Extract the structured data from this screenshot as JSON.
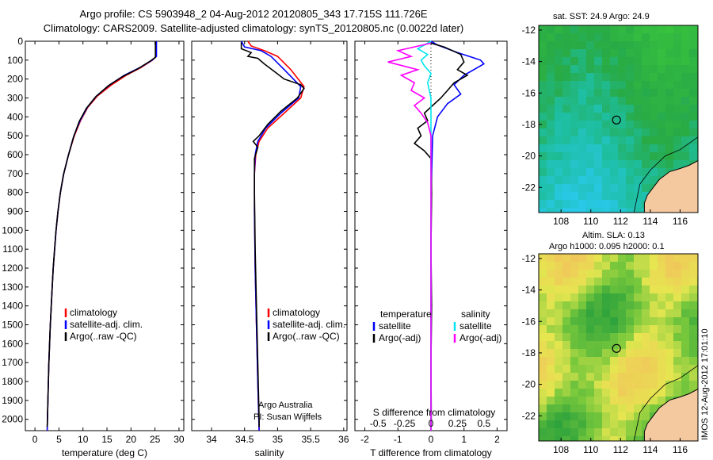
{
  "header": {
    "title_line1": "Argo profile: CS 5903948_2 04-Aug-2012 20120805_343 17.715S 111.726E",
    "title_line2": "Climatology: CARS2009. Satellite-adjusted climatology: synTS_20120805.nc (0.0022d later)"
  },
  "credit": {
    "org": "Argo Australia",
    "pi": "PI: Susan Wijffels",
    "stamp": "IMOS 12-Aug-2012 17:01:10"
  },
  "colors": {
    "climatology": "#ff0000",
    "satellite": "#0000ff",
    "argo": "#000000",
    "sal_satellite": "#00e5ee",
    "sal_argo": "#ff00ff",
    "land": "#f5c9a0"
  },
  "chart_data": [
    {
      "type": "line",
      "id": "temperature",
      "xlabel": "temperature (deg C)",
      "ylabel": "",
      "xlim": [
        -2,
        31
      ],
      "ylim": [
        2060,
        0
      ],
      "xticks": [
        "0",
        "5",
        "10",
        "15",
        "20",
        "25",
        "30"
      ],
      "xtick_values": [
        0,
        5,
        10,
        15,
        20,
        25,
        30
      ],
      "yticks": [
        "0",
        "100",
        "200",
        "300",
        "400",
        "500",
        "600",
        "700",
        "800",
        "900",
        "1000",
        "1100",
        "1200",
        "1300",
        "1400",
        "1500",
        "1600",
        "1700",
        "1800",
        "1900",
        "2000"
      ],
      "ytick_values": [
        0,
        100,
        200,
        300,
        400,
        500,
        600,
        700,
        800,
        900,
        1000,
        1100,
        1200,
        1300,
        1400,
        1500,
        1600,
        1700,
        1800,
        1900,
        2000
      ],
      "legend": [
        "climatology",
        "satellite-adj. clim.",
        "Argo(..raw -QC)"
      ],
      "series": [
        {
          "name": "climatology",
          "color": "#ff0000",
          "points": [
            [
              25.2,
              0
            ],
            [
              25.2,
              80
            ],
            [
              24.5,
              100
            ],
            [
              22,
              140
            ],
            [
              19,
              180
            ],
            [
              16,
              230
            ],
            [
              13,
              290
            ],
            [
              11,
              350
            ],
            [
              9.5,
              420
            ],
            [
              8.2,
              500
            ],
            [
              7,
              600
            ],
            [
              6,
              700
            ],
            [
              5.3,
              800
            ],
            [
              4.8,
              900
            ],
            [
              4.4,
              1000
            ],
            [
              4.1,
              1100
            ],
            [
              3.8,
              1200
            ],
            [
              3.6,
              1300
            ],
            [
              3.4,
              1400
            ],
            [
              3.2,
              1500
            ],
            [
              3.05,
              1600
            ],
            [
              2.9,
              1700
            ],
            [
              2.8,
              1800
            ],
            [
              2.7,
              1900
            ],
            [
              2.6,
              2000
            ],
            [
              2.55,
              2060
            ]
          ]
        },
        {
          "name": "satellite-adj. clim.",
          "color": "#0000ff",
          "points": [
            [
              25.3,
              0
            ],
            [
              25.3,
              80
            ],
            [
              24.4,
              100
            ],
            [
              21.8,
              140
            ],
            [
              18.6,
              180
            ],
            [
              15.6,
              230
            ],
            [
              12.8,
              290
            ],
            [
              10.9,
              350
            ],
            [
              9.4,
              420
            ],
            [
              8.1,
              500
            ],
            [
              7,
              600
            ],
            [
              6,
              700
            ],
            [
              5.3,
              800
            ],
            [
              4.8,
              900
            ],
            [
              4.4,
              1000
            ],
            [
              4.1,
              1100
            ],
            [
              3.8,
              1200
            ],
            [
              3.6,
              1300
            ],
            [
              3.4,
              1400
            ],
            [
              3.2,
              1500
            ],
            [
              3.05,
              1600
            ],
            [
              2.9,
              1700
            ],
            [
              2.8,
              1800
            ],
            [
              2.7,
              1900
            ],
            [
              2.6,
              2000
            ],
            [
              2.55,
              2060
            ]
          ]
        },
        {
          "name": "Argo(..raw -QC)",
          "color": "#000000",
          "points": [
            [
              25.1,
              2
            ],
            [
              25.1,
              85
            ],
            [
              24,
              105
            ],
            [
              21.5,
              145
            ],
            [
              18.4,
              185
            ],
            [
              15.3,
              235
            ],
            [
              12.6,
              295
            ],
            [
              10.7,
              355
            ],
            [
              9.2,
              425
            ],
            [
              8,
              510
            ],
            [
              6.9,
              610
            ],
            [
              5.9,
              710
            ],
            [
              5.25,
              810
            ],
            [
              4.75,
              910
            ],
            [
              4.35,
              1010
            ],
            [
              4.05,
              1110
            ],
            [
              3.78,
              1210
            ],
            [
              3.58,
              1310
            ],
            [
              3.38,
              1410
            ],
            [
              3.18,
              1510
            ],
            [
              3.03,
              1610
            ],
            [
              2.88,
              1710
            ],
            [
              2.78,
              1810
            ],
            [
              2.68,
              1910
            ],
            [
              2.58,
              2010
            ],
            [
              2.55,
              2040
            ]
          ]
        }
      ]
    },
    {
      "type": "line",
      "id": "salinity",
      "xlabel": "salinity",
      "xlim": [
        33.7,
        36.05
      ],
      "ylim": [
        2060,
        0
      ],
      "xticks": [
        "34",
        "34.5",
        "35",
        "35.5",
        "36"
      ],
      "xtick_values": [
        34,
        34.5,
        35,
        35.5,
        36
      ],
      "legend": [
        "climatology",
        "satellite-adj. clim.",
        "Argo(..raw -QC)"
      ],
      "series": [
        {
          "name": "climatology",
          "color": "#ff0000",
          "points": [
            [
              34.55,
              0
            ],
            [
              34.6,
              25
            ],
            [
              34.8,
              50
            ],
            [
              35.0,
              80
            ],
            [
              35.2,
              150
            ],
            [
              35.4,
              240
            ],
            [
              35.35,
              300
            ],
            [
              35.1,
              380
            ],
            [
              34.85,
              460
            ],
            [
              34.72,
              530
            ],
            [
              34.67,
              600
            ],
            [
              34.65,
              700
            ],
            [
              34.65,
              900
            ],
            [
              34.66,
              1200
            ],
            [
              34.68,
              1500
            ],
            [
              34.7,
              1800
            ],
            [
              34.72,
              2060
            ]
          ]
        },
        {
          "name": "satellite-adj. clim.",
          "color": "#0000ff",
          "points": [
            [
              34.45,
              0
            ],
            [
              34.5,
              30
            ],
            [
              34.75,
              50
            ],
            [
              34.9,
              80
            ],
            [
              35.1,
              150
            ],
            [
              35.35,
              240
            ],
            [
              35.32,
              300
            ],
            [
              35.05,
              380
            ],
            [
              34.82,
              460
            ],
            [
              34.7,
              530
            ],
            [
              34.66,
              600
            ],
            [
              34.65,
              700
            ],
            [
              34.65,
              900
            ],
            [
              34.66,
              1200
            ],
            [
              34.68,
              1500
            ],
            [
              34.7,
              1800
            ],
            [
              34.72,
              2060
            ]
          ]
        },
        {
          "name": "Argo(..raw -QC)",
          "color": "#000000",
          "points": [
            [
              34.45,
              5
            ],
            [
              34.45,
              40
            ],
            [
              34.6,
              60
            ],
            [
              34.55,
              80
            ],
            [
              34.7,
              90
            ],
            [
              34.8,
              120
            ],
            [
              34.95,
              160
            ],
            [
              35.1,
              200
            ],
            [
              35.35,
              230
            ],
            [
              35.4,
              250
            ],
            [
              35.3,
              300
            ],
            [
              35.05,
              370
            ],
            [
              34.85,
              440
            ],
            [
              34.72,
              500
            ],
            [
              34.63,
              530
            ],
            [
              34.7,
              560
            ],
            [
              34.65,
              620
            ],
            [
              34.65,
              800
            ],
            [
              34.66,
              1100
            ],
            [
              34.68,
              1400
            ],
            [
              34.7,
              1700
            ],
            [
              34.72,
              2000
            ],
            [
              34.72,
              2040
            ]
          ]
        }
      ]
    },
    {
      "type": "line",
      "id": "difference",
      "xlabel": "T difference from climatology",
      "xlabel_top": "S difference from climatology",
      "xlim": [
        -2.3,
        2.3
      ],
      "ylim": [
        2060,
        0
      ],
      "xticks": [
        "-2",
        "-1",
        "0",
        "1",
        "2"
      ],
      "xtick_values": [
        -2,
        -1,
        0,
        1,
        2
      ],
      "sticks": [
        "-0.5",
        "-0.25",
        "0",
        "0.25",
        "0.5"
      ],
      "stick_values": [
        -1.6,
        -0.8,
        0,
        0.8,
        1.6
      ],
      "legend_title_t": "temperature",
      "legend_title_s": "salinity",
      "legend": [
        "satellite",
        "Argo(-adj)",
        "satellite",
        "Argo(-adj)"
      ],
      "series": [
        {
          "name": "T satellite",
          "color": "#0000ff",
          "points": [
            [
              0,
              0
            ],
            [
              0.2,
              20
            ],
            [
              0.8,
              60
            ],
            [
              1.5,
              100
            ],
            [
              1.6,
              120
            ],
            [
              1.0,
              180
            ],
            [
              0.7,
              230
            ],
            [
              0.9,
              280
            ],
            [
              0.5,
              330
            ],
            [
              0.2,
              400
            ],
            [
              0.05,
              500
            ],
            [
              0.02,
              700
            ],
            [
              0,
              1000
            ],
            [
              0,
              2060
            ]
          ]
        },
        {
          "name": "T Argo(-adj)",
          "color": "#000000",
          "points": [
            [
              0,
              10
            ],
            [
              0.4,
              30
            ],
            [
              0.9,
              70
            ],
            [
              1.0,
              110
            ],
            [
              0.8,
              150
            ],
            [
              1.1,
              180
            ],
            [
              0.7,
              220
            ],
            [
              0.5,
              260
            ],
            [
              0.3,
              300
            ],
            [
              0.05,
              340
            ],
            [
              -0.2,
              380
            ],
            [
              -0.1,
              420
            ],
            [
              -0.4,
              460
            ],
            [
              -0.3,
              500
            ],
            [
              -0.5,
              540
            ],
            [
              -0.2,
              580
            ],
            [
              0,
              620
            ],
            [
              0.02,
              800
            ],
            [
              0,
              1100
            ],
            [
              0.02,
              1400
            ],
            [
              0,
              1700
            ],
            [
              0.01,
              2000
            ],
            [
              0,
              2040
            ]
          ]
        },
        {
          "name": "S satellite",
          "color": "#00e5ee",
          "points": [
            [
              0,
              0
            ],
            [
              -0.4,
              40
            ],
            [
              -0.1,
              70
            ],
            [
              -0.3,
              100
            ],
            [
              -0.2,
              130
            ],
            [
              0,
              170
            ],
            [
              -0.1,
              220
            ],
            [
              0,
              300
            ],
            [
              0,
              2060
            ]
          ]
        },
        {
          "name": "S Argo(-adj)",
          "color": "#ff00ff",
          "points": [
            [
              0,
              10
            ],
            [
              -1.0,
              50
            ],
            [
              -0.6,
              80
            ],
            [
              -1.3,
              110
            ],
            [
              -0.4,
              150
            ],
            [
              -0.9,
              180
            ],
            [
              -0.5,
              220
            ],
            [
              -0.6,
              260
            ],
            [
              -0.2,
              300
            ],
            [
              -0.5,
              340
            ],
            [
              -0.3,
              380
            ],
            [
              -0.1,
              430
            ],
            [
              0,
              500
            ],
            [
              0,
              700
            ],
            [
              0,
              2060
            ]
          ]
        }
      ]
    },
    {
      "type": "heatmap",
      "id": "sst-map",
      "title": "sat. SST: 24.9  Argo: 24.9",
      "xticks": [
        "108",
        "110",
        "112",
        "114",
        "116"
      ],
      "yticks": [
        "-12",
        "-14",
        "-16",
        "-18",
        "-20",
        "-22"
      ],
      "lon_range": [
        106.5,
        117.2
      ],
      "lat_range": [
        -23.6,
        -11.7
      ],
      "marker": {
        "lon": 111.726,
        "lat": -17.715
      }
    },
    {
      "type": "heatmap",
      "id": "sla-map",
      "title_line1": "Altim. SLA: 0.13",
      "title_line2": "Argo h1000: 0.095  h2000: 0.1",
      "xticks": [
        "108",
        "110",
        "112",
        "114",
        "116"
      ],
      "yticks": [
        "-12",
        "-14",
        "-16",
        "-18",
        "-20",
        "-22"
      ],
      "lon_range": [
        106.5,
        117.2
      ],
      "lat_range": [
        -23.6,
        -11.7
      ],
      "marker": {
        "lon": 111.726,
        "lat": -17.715
      }
    }
  ]
}
